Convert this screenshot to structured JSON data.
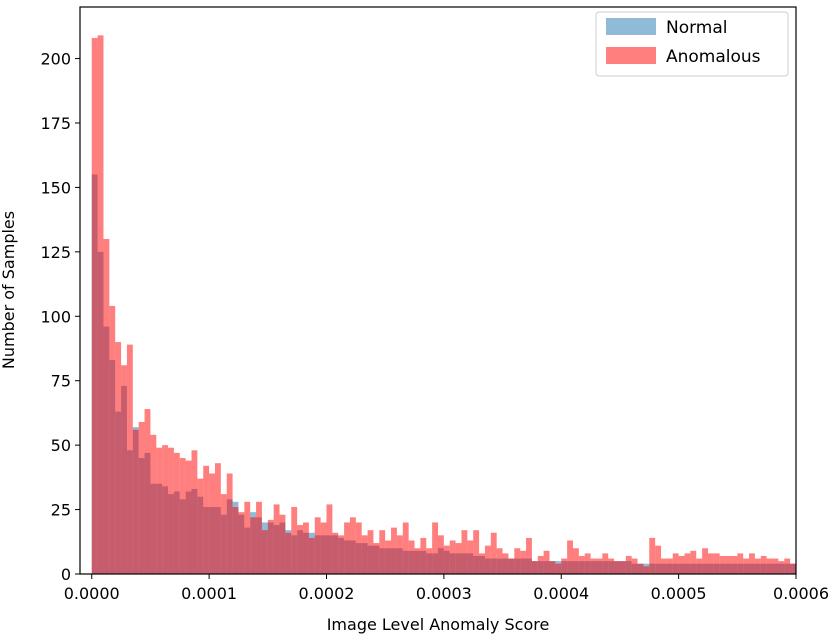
{
  "chart_data": {
    "type": "bar",
    "xlabel": "Image Level Anomaly Score",
    "ylabel": "Number of Samples",
    "xlim": [
      -1e-05,
      0.0006
    ],
    "ylim": [
      0,
      220
    ],
    "grid": false,
    "legend_position": "top-right",
    "x_ticks": [
      0.0,
      0.0001,
      0.0002,
      0.0003,
      0.0004,
      0.0005,
      0.0006
    ],
    "x_tick_labels": [
      "0.0000",
      "0.0001",
      "0.0002",
      "0.0003",
      "0.0004",
      "0.0005",
      "0.0006"
    ],
    "y_ticks": [
      0,
      25,
      50,
      75,
      100,
      125,
      150,
      175,
      200
    ],
    "y_tick_labels": [
      "0",
      "25",
      "50",
      "75",
      "100",
      "125",
      "150",
      "175",
      "200"
    ],
    "bin_start": 0.0,
    "bin_width": 5e-06,
    "series": [
      {
        "name": "Normal",
        "color": "#1f77b4",
        "opacity": 0.5,
        "values": [
          155,
          125,
          96,
          83,
          63,
          73,
          48,
          57,
          45,
          47,
          35,
          35,
          34,
          31,
          32,
          29,
          32,
          33,
          30,
          26,
          26,
          26,
          23,
          29,
          28,
          23,
          18,
          24,
          22,
          20,
          20,
          19,
          20,
          17,
          15,
          17,
          16,
          16,
          15,
          15,
          15,
          15,
          14,
          13,
          13,
          12,
          12,
          11,
          11,
          10,
          10,
          10,
          10,
          9,
          9,
          9,
          9,
          8,
          8,
          10,
          9,
          8,
          8,
          8,
          8,
          7,
          7,
          6,
          6,
          6,
          6,
          6,
          6,
          6,
          6,
          5,
          5,
          5,
          5,
          5,
          5,
          5,
          5,
          5,
          5,
          5,
          5,
          5,
          5,
          5,
          5,
          5,
          4,
          4,
          4,
          4,
          4,
          4,
          4,
          4,
          4,
          4,
          4,
          4,
          4,
          4,
          4,
          4,
          4,
          4,
          4,
          4,
          4,
          4,
          4,
          4,
          4,
          4,
          4,
          4
        ]
      },
      {
        "name": "Anomalous",
        "color": "#ff0000",
        "opacity": 0.5,
        "values": [
          208,
          209,
          130,
          104,
          90,
          81,
          89,
          56,
          59,
          64,
          54,
          49,
          50,
          49,
          47,
          45,
          44,
          48,
          37,
          42,
          39,
          43,
          31,
          39,
          26,
          24,
          28,
          22,
          28,
          17,
          21,
          27,
          23,
          16,
          26,
          19,
          20,
          14,
          22,
          20,
          27,
          16,
          15,
          20,
          22,
          20,
          15,
          17,
          12,
          17,
          13,
          18,
          15,
          20,
          13,
          10,
          14,
          10,
          20,
          15,
          11,
          13,
          12,
          17,
          13,
          17,
          8,
          11,
          16,
          10,
          8,
          6,
          10,
          9,
          14,
          5,
          7,
          9,
          5,
          4,
          6,
          13,
          10,
          7,
          8,
          6,
          6,
          8,
          6,
          5,
          5,
          7,
          6,
          4,
          3,
          14,
          11,
          6,
          6,
          8,
          7,
          8,
          9,
          6,
          10,
          8,
          8,
          7,
          7,
          7,
          8,
          6,
          8,
          6,
          7,
          6,
          6,
          5,
          6,
          4
        ]
      }
    ]
  }
}
